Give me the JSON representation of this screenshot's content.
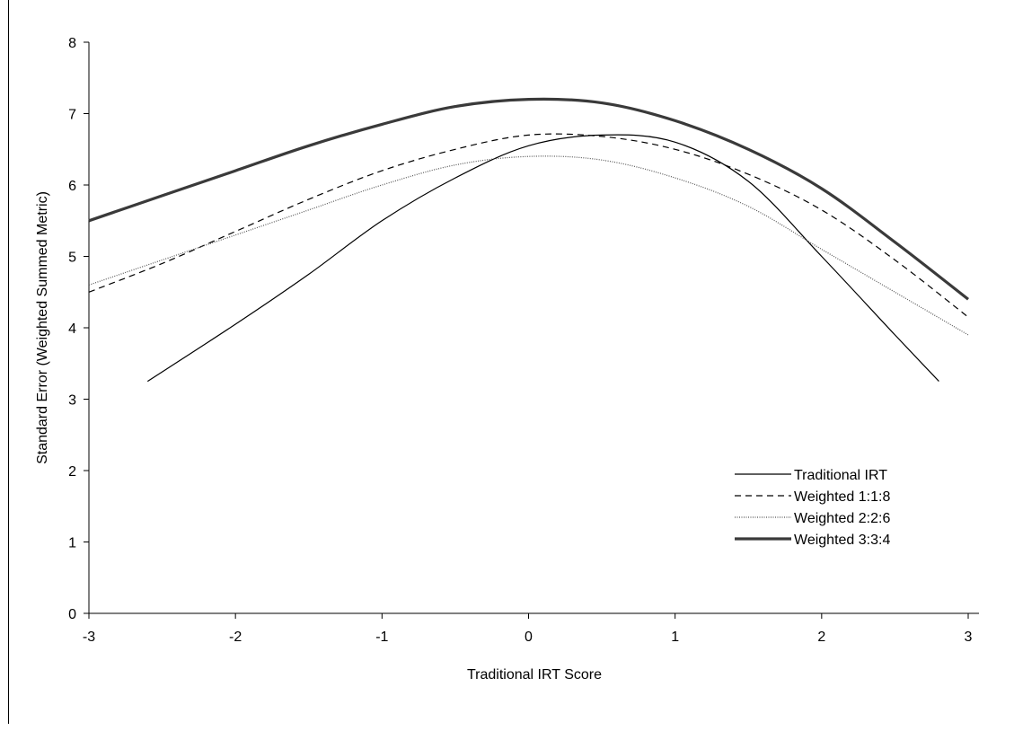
{
  "chart_data": {
    "type": "line",
    "title": "",
    "xlabel": "Traditional IRT Score",
    "ylabel": "Standard Error (Weighted Summed Metric)",
    "xlim": [
      -3,
      3
    ],
    "ylim": [
      0,
      8
    ],
    "x_ticks": [
      -3,
      -2,
      -1,
      0,
      1,
      2,
      3
    ],
    "y_ticks": [
      0,
      1,
      2,
      3,
      4,
      5,
      6,
      7,
      8
    ],
    "grid": false,
    "legend_position": "lower-right",
    "series": [
      {
        "name": "Traditional IRT",
        "style": "solid",
        "color": "#000000",
        "x": [
          -2.6,
          -2.0,
          -1.5,
          -1.0,
          -0.5,
          0.0,
          0.5,
          1.0,
          1.5,
          2.0,
          2.5,
          2.8
        ],
        "y": [
          3.25,
          4.05,
          4.75,
          5.5,
          6.1,
          6.55,
          6.7,
          6.6,
          6.05,
          5.0,
          3.9,
          3.25
        ]
      },
      {
        "name": "Weighted 1:1:8",
        "style": "dashed",
        "color": "#000000",
        "x": [
          -3.0,
          -2.5,
          -2.0,
          -1.5,
          -1.0,
          -0.5,
          0.0,
          0.5,
          1.0,
          1.5,
          2.0,
          2.5,
          3.0
        ],
        "y": [
          4.5,
          4.9,
          5.35,
          5.8,
          6.2,
          6.5,
          6.7,
          6.68,
          6.5,
          6.15,
          5.65,
          4.95,
          4.15
        ]
      },
      {
        "name": "Weighted 2:2:6",
        "style": "dotted",
        "color": "#555555",
        "x": [
          -3.0,
          -2.5,
          -2.0,
          -1.5,
          -1.0,
          -0.5,
          0.0,
          0.5,
          1.0,
          1.5,
          2.0,
          2.5,
          3.0
        ],
        "y": [
          4.6,
          4.95,
          5.3,
          5.65,
          6.0,
          6.28,
          6.4,
          6.35,
          6.1,
          5.7,
          5.1,
          4.5,
          3.9
        ]
      },
      {
        "name": "Weighted 3:3:4",
        "style": "thick",
        "color": "#3a3a3a",
        "x": [
          -3.0,
          -2.5,
          -2.0,
          -1.5,
          -1.0,
          -0.5,
          0.0,
          0.5,
          1.0,
          1.5,
          2.0,
          2.5,
          3.0
        ],
        "y": [
          5.5,
          5.85,
          6.2,
          6.55,
          6.85,
          7.1,
          7.2,
          7.15,
          6.9,
          6.5,
          5.95,
          5.2,
          4.4
        ]
      }
    ]
  }
}
